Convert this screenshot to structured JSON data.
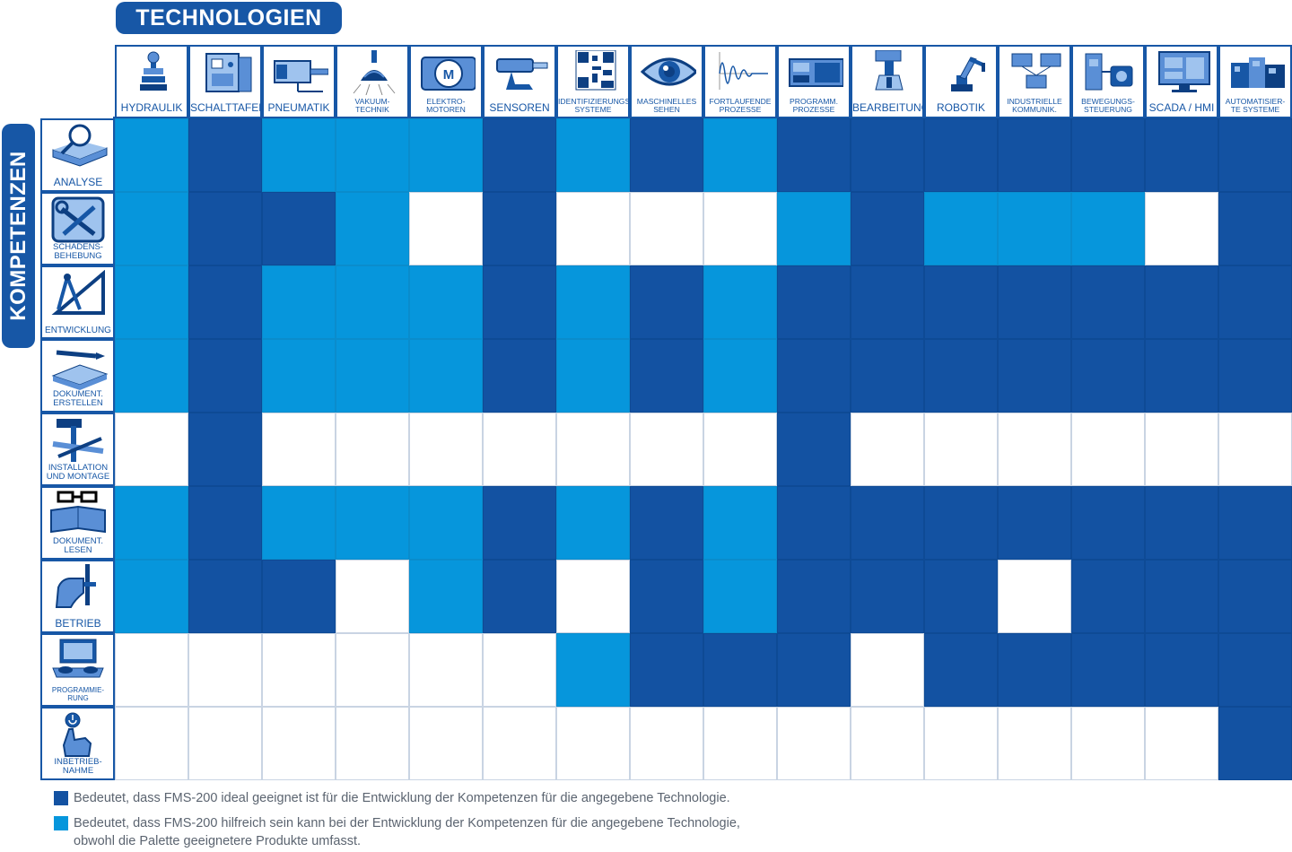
{
  "header_technologies": "TECHNOLOGIEN",
  "header_competences": "KOMPETENZEN",
  "colors": {
    "ideal": "#1352a2",
    "helpful": "#0696dc",
    "none": "#ffffff",
    "frame": "#1757a6"
  },
  "technologies": [
    {
      "label": "HYDRAULIK",
      "icon": "hydraulic-valve-icon"
    },
    {
      "label": "SCHALTTAFELN",
      "icon": "control-panel-icon"
    },
    {
      "label": "PNEUMATIK",
      "icon": "pneumatic-cylinder-icon"
    },
    {
      "label": "VAKUUM-\nTECHNIK",
      "icon": "vacuum-suction-cup-icon"
    },
    {
      "label": "ELEKTRO-\nMOTOREN",
      "icon": "electric-motor-icon"
    },
    {
      "label": "SENSOREN",
      "icon": "sensor-icon"
    },
    {
      "label": "IDENTIFIZIERUNGS-\nSYSTEME",
      "icon": "qr-code-icon"
    },
    {
      "label": "MASCHINELLES\nSEHEN",
      "icon": "eye-icon"
    },
    {
      "label": "FORTLAUFENDE\nPROZESSE",
      "icon": "signal-wave-icon"
    },
    {
      "label": "PROGRAMM.\nPROZESSE",
      "icon": "plc-controller-icon"
    },
    {
      "label": "BEARBEITUNG",
      "icon": "machining-tool-icon"
    },
    {
      "label": "ROBOTIK",
      "icon": "robot-arm-icon"
    },
    {
      "label": "INDUSTRIELLE\nKOMMUNIK.",
      "icon": "network-modules-icon"
    },
    {
      "label": "BEWEGUNGS-\nSTEUERUNG",
      "icon": "drive-motor-icon"
    },
    {
      "label": "SCADA / HMI",
      "icon": "monitor-screen-icon"
    },
    {
      "label": "AUTOMATISIER-\nTE SYSTEME",
      "icon": "automated-system-icon"
    }
  ],
  "competences": [
    {
      "label": "ANALYSE",
      "icon": "magnifier-book-icon"
    },
    {
      "label": "SCHADENS-\nBEHEBUNG",
      "icon": "wrench-screwdriver-icon"
    },
    {
      "label": "ENTWICKLUNG",
      "icon": "compass-ruler-icon"
    },
    {
      "label": "DOKUMENT.\nERSTELLEN",
      "icon": "pen-document-icon"
    },
    {
      "label": "INSTALLATION\nUND MONTAGE",
      "icon": "hammer-tools-icon"
    },
    {
      "label": "DOKUMENT.\nLESEN",
      "icon": "glasses-book-icon"
    },
    {
      "label": "BETRIEB",
      "icon": "hand-lever-icon"
    },
    {
      "label": "PROGRAMMIE-\nRUNG",
      "icon": "laptop-hands-icon"
    },
    {
      "label": "INBETRIEB-\nNAHME",
      "icon": "power-button-finger-icon"
    }
  ],
  "matrix": [
    [
      "helpful",
      "ideal",
      "helpful",
      "helpful",
      "helpful",
      "ideal",
      "helpful",
      "ideal",
      "helpful",
      "ideal",
      "ideal",
      "ideal",
      "ideal",
      "ideal",
      "ideal",
      "ideal"
    ],
    [
      "helpful",
      "ideal",
      "ideal",
      "helpful",
      "none",
      "ideal",
      "none",
      "none",
      "none",
      "helpful",
      "ideal",
      "helpful",
      "helpful",
      "helpful",
      "none",
      "ideal"
    ],
    [
      "helpful",
      "ideal",
      "helpful",
      "helpful",
      "helpful",
      "ideal",
      "helpful",
      "ideal",
      "helpful",
      "ideal",
      "ideal",
      "ideal",
      "ideal",
      "ideal",
      "ideal",
      "ideal"
    ],
    [
      "helpful",
      "ideal",
      "helpful",
      "helpful",
      "helpful",
      "ideal",
      "helpful",
      "ideal",
      "helpful",
      "ideal",
      "ideal",
      "ideal",
      "ideal",
      "ideal",
      "ideal",
      "ideal"
    ],
    [
      "none",
      "ideal",
      "none",
      "none",
      "none",
      "none",
      "none",
      "none",
      "none",
      "ideal",
      "none",
      "none",
      "none",
      "none",
      "none",
      "none"
    ],
    [
      "helpful",
      "ideal",
      "helpful",
      "helpful",
      "helpful",
      "ideal",
      "helpful",
      "ideal",
      "helpful",
      "ideal",
      "ideal",
      "ideal",
      "ideal",
      "ideal",
      "ideal",
      "ideal"
    ],
    [
      "helpful",
      "ideal",
      "ideal",
      "none",
      "helpful",
      "ideal",
      "none",
      "ideal",
      "helpful",
      "ideal",
      "ideal",
      "ideal",
      "none",
      "ideal",
      "ideal",
      "ideal"
    ],
    [
      "none",
      "none",
      "none",
      "none",
      "none",
      "none",
      "helpful",
      "ideal",
      "ideal",
      "ideal",
      "none",
      "ideal",
      "ideal",
      "ideal",
      "ideal",
      "ideal"
    ],
    [
      "none",
      "none",
      "none",
      "none",
      "none",
      "none",
      "none",
      "none",
      "none",
      "none",
      "none",
      "none",
      "none",
      "none",
      "none",
      "ideal"
    ]
  ],
  "legend": {
    "ideal": "Bedeutet, dass FMS-200 ideal geeignet ist für die Entwicklung der Kompetenzen für die angegebene Technologie.",
    "helpful_line1": "Bedeutet, dass FMS-200 hilfreich sein kann bei der Entwicklung der Kompetenzen für die angegebene Technologie,",
    "helpful_line2": "obwohl die Palette geeignetere Produkte umfasst."
  }
}
